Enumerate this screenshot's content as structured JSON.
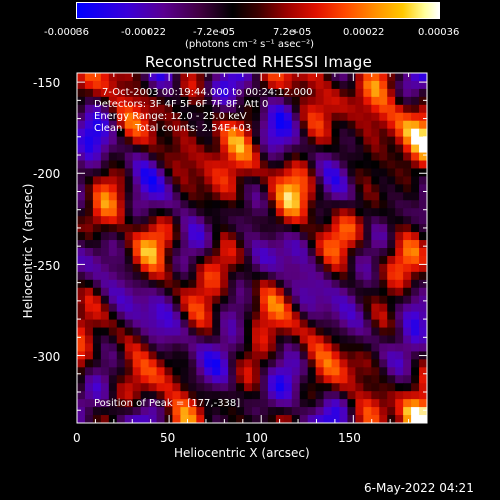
{
  "colorbar": {
    "ticks": [
      "-0.00036",
      "-0.00022",
      "-7.2e-05",
      "7.2e-05",
      "0.00022",
      "0.00036"
    ],
    "units": "(photons cm⁻² s⁻¹ asec⁻²)",
    "range": [
      -0.00036,
      0.00036
    ]
  },
  "chart_data": {
    "type": "heatmap",
    "title": "Reconstructed RHESSI Image",
    "xlabel": "Heliocentric X (arcsec)",
    "ylabel": "Heliocentric Y (arcsec)",
    "xlim": [
      0,
      190
    ],
    "ylim": [
      -337,
      -145
    ],
    "xticks": [
      "0",
      "50",
      "100",
      "150"
    ],
    "yticks": [
      "-150",
      "-200",
      "-250",
      "-300"
    ],
    "annotations": [
      "7-Oct-2003 00:19:44.000 to 00:24:12.000",
      "Detectors: 3F 4F 5F 6F 7F 8F, Att 0",
      "Energy Range: 12.0 - 25.0 keV",
      "Clean    Total counts: 2.54E+03"
    ],
    "peak_label": "Position of Peak = [177,-338]",
    "peak": [
      177,
      -338
    ]
  },
  "timestamp": "6-May-2022 04:21"
}
